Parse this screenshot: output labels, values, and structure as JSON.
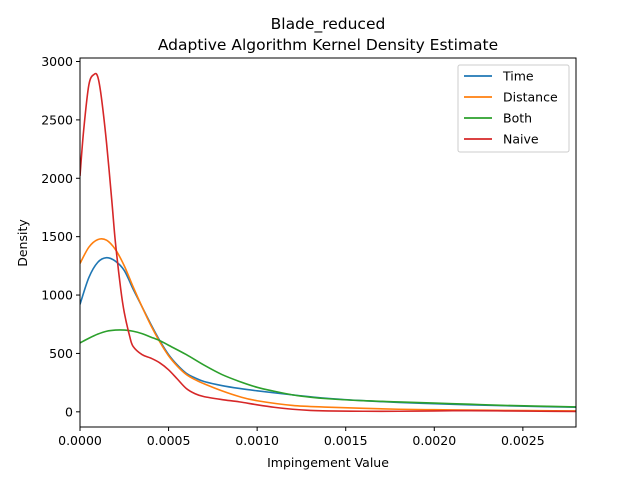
{
  "chart_data": {
    "type": "line",
    "title": "Blade_reduced",
    "subtitle": "Adaptive Algorithm Kernel Density Estimate",
    "xlabel": "Impingement Value",
    "ylabel": "Density",
    "xlim": [
      0,
      0.0028
    ],
    "ylim": [
      -130,
      3030
    ],
    "xticks": [
      0,
      0.0005,
      0.001,
      0.0015,
      0.002,
      0.0025
    ],
    "xtick_labels": [
      "0.0000",
      "0.0005",
      "0.0010",
      "0.0015",
      "0.0020",
      "0.0025"
    ],
    "yticks": [
      0,
      500,
      1000,
      1500,
      2000,
      2500,
      3000
    ],
    "ytick_labels": [
      "0",
      "500",
      "1000",
      "1500",
      "2000",
      "2500",
      "3000"
    ],
    "grid": false,
    "legend_position": "top-right",
    "series": [
      {
        "name": "Time",
        "color": "#1f77b4",
        "x": [
          0,
          5e-05,
          0.0001,
          0.00015,
          0.0002,
          0.00025,
          0.0003,
          0.00035,
          0.0004,
          0.00045,
          0.0005,
          0.00055,
          0.0006,
          0.00065,
          0.0007,
          0.0008,
          0.0009,
          0.001,
          0.0012,
          0.0014,
          0.0016,
          0.0018,
          0.002,
          0.0022,
          0.0024,
          0.0026,
          0.0028
        ],
        "y": [
          920,
          1150,
          1280,
          1320,
          1290,
          1210,
          1050,
          900,
          750,
          610,
          490,
          400,
          330,
          290,
          260,
          225,
          200,
          180,
          145,
          115,
          95,
          80,
          70,
          60,
          52,
          45,
          40
        ]
      },
      {
        "name": "Distance",
        "color": "#ff7f0e",
        "x": [
          0,
          5e-05,
          0.0001,
          0.00015,
          0.0002,
          0.00025,
          0.0003,
          0.00035,
          0.0004,
          0.00045,
          0.0005,
          0.00055,
          0.0006,
          0.00065,
          0.0007,
          0.0008,
          0.0009,
          0.001,
          0.0012,
          0.0014,
          0.0016,
          0.0018,
          0.002,
          0.0022,
          0.0024,
          0.0026,
          0.0028
        ],
        "y": [
          1270,
          1410,
          1475,
          1470,
          1390,
          1250,
          1070,
          900,
          740,
          600,
          480,
          390,
          320,
          275,
          240,
          180,
          130,
          95,
          55,
          40,
          30,
          22,
          18,
          15,
          12,
          10,
          8
        ]
      },
      {
        "name": "Both",
        "color": "#2ca02c",
        "x": [
          0,
          5e-05,
          0.0001,
          0.00015,
          0.0002,
          0.00025,
          0.0003,
          0.00035,
          0.0004,
          0.00045,
          0.0005,
          0.0006,
          0.0007,
          0.0008,
          0.0009,
          0.001,
          0.0011,
          0.0012,
          0.0013,
          0.0014,
          0.0016,
          0.0018,
          0.002,
          0.0022,
          0.0024,
          0.0026,
          0.0028
        ],
        "y": [
          590,
          630,
          665,
          690,
          700,
          700,
          690,
          670,
          640,
          610,
          570,
          490,
          400,
          320,
          260,
          210,
          175,
          145,
          125,
          112,
          95,
          85,
          75,
          65,
          55,
          48,
          42
        ]
      },
      {
        "name": "Naive",
        "color": "#d62728",
        "x": [
          0,
          2e-05,
          5e-05,
          8e-05,
          0.0001,
          0.00012,
          0.00015,
          0.00018,
          0.0002,
          0.00023,
          0.00025,
          0.00028,
          0.0003,
          0.00035,
          0.0004,
          0.00045,
          0.0005,
          0.00055,
          0.0006,
          0.00065,
          0.0007,
          0.0008,
          0.0009,
          0.001,
          0.0011,
          0.0012,
          0.0013,
          0.0014,
          0.0016,
          0.0018,
          0.002,
          0.0022,
          0.0024,
          0.0026,
          0.0028
        ],
        "y": [
          2020,
          2400,
          2800,
          2890,
          2870,
          2700,
          2300,
          1800,
          1450,
          1050,
          850,
          650,
          560,
          490,
          460,
          420,
          360,
          280,
          200,
          155,
          130,
          105,
          85,
          60,
          38,
          22,
          12,
          8,
          5,
          5,
          8,
          10,
          8,
          5,
          3
        ]
      }
    ]
  }
}
